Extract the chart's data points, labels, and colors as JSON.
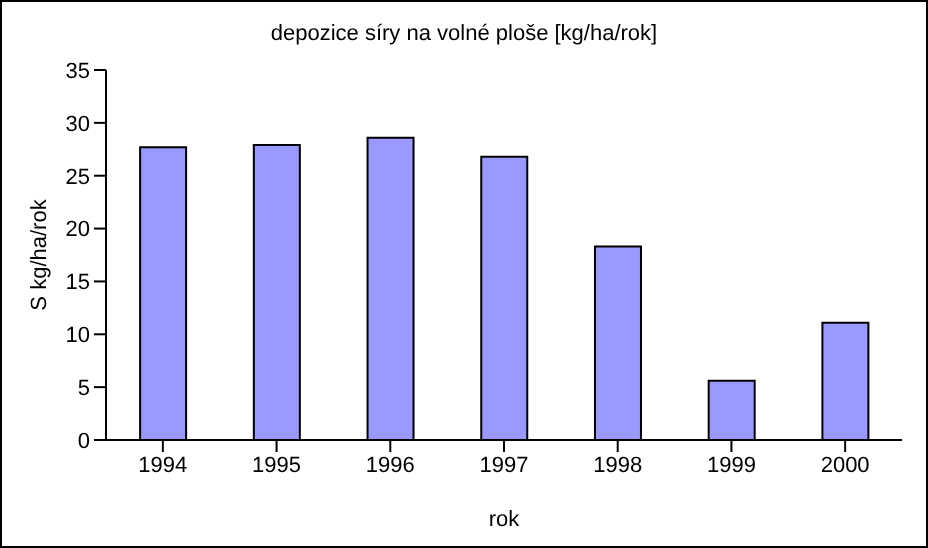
{
  "chart_data": {
    "type": "bar",
    "title": "depozice síry na volné ploše [kg/ha/rok]",
    "xlabel": "rok",
    "ylabel": "S kg/ha/rok",
    "categories": [
      "1994",
      "1995",
      "1996",
      "1997",
      "1998",
      "1999",
      "2000"
    ],
    "values": [
      27.7,
      27.9,
      28.6,
      26.8,
      18.3,
      5.6,
      11.1
    ],
    "color": "#9999ff",
    "ylim": [
      0,
      35
    ],
    "yticks": [
      0,
      5,
      10,
      15,
      20,
      25,
      30,
      35
    ],
    "grid": false,
    "legend": false
  }
}
